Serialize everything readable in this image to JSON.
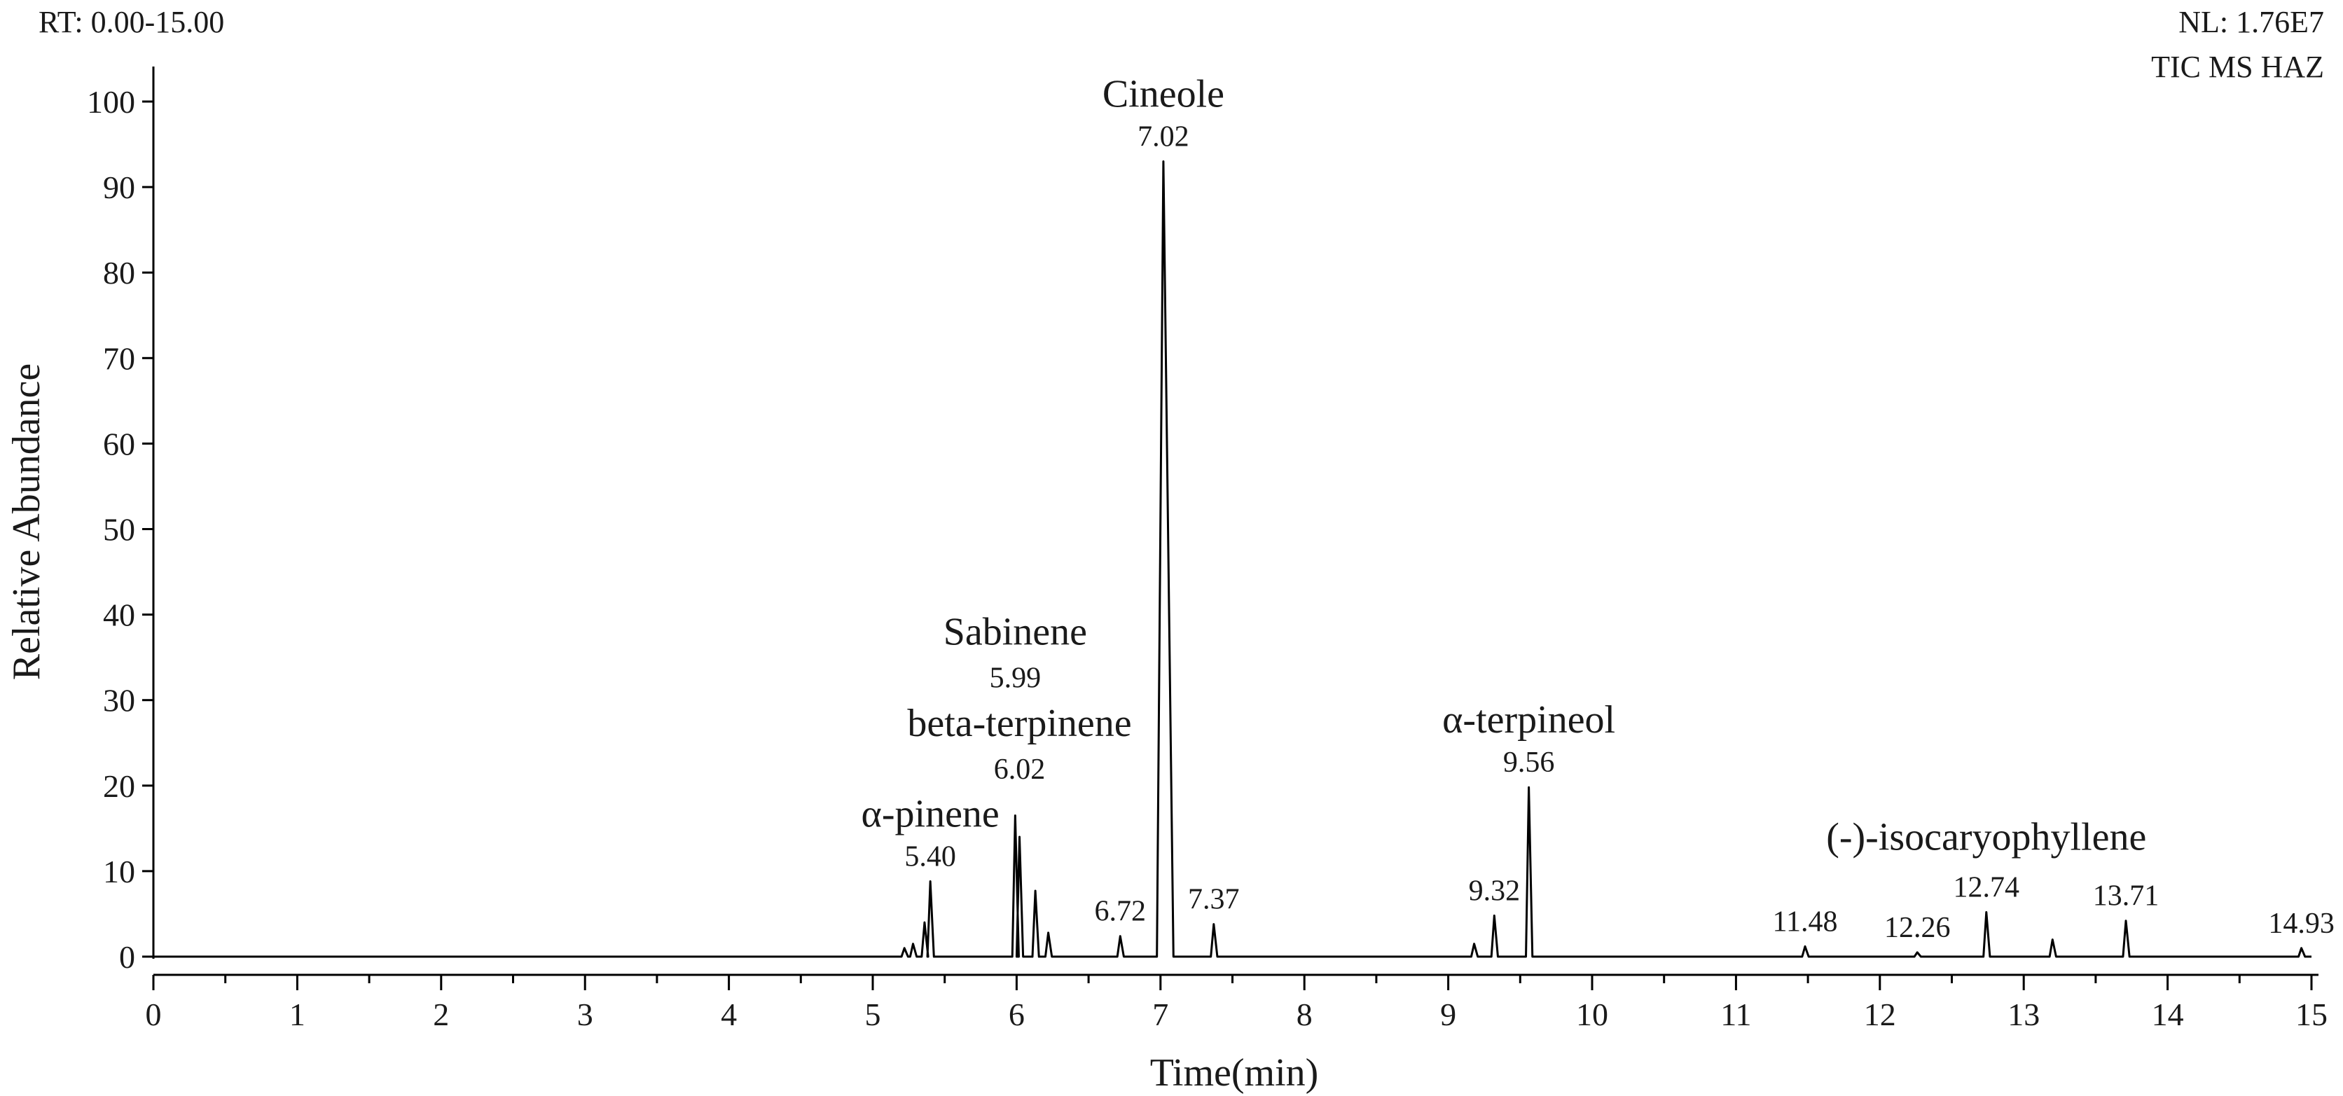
{
  "header": {
    "rt_range": "RT:  0.00-15.00",
    "nl": "NL:  1.76E7",
    "trace_type": "TIC MS HAZ"
  },
  "chart_data": {
    "type": "line",
    "xlabel": "Time(min)",
    "ylabel": "Relative Abundance",
    "xlim": [
      0,
      15
    ],
    "ylim": [
      0,
      100
    ],
    "x_ticks": [
      0,
      1,
      2,
      3,
      4,
      5,
      6,
      7,
      8,
      9,
      10,
      11,
      12,
      13,
      14,
      15
    ],
    "y_ticks": [
      0,
      10,
      20,
      30,
      40,
      50,
      60,
      70,
      80,
      90,
      100
    ],
    "grid": false,
    "peaks": [
      {
        "rt": 5.22,
        "height": 1.0
      },
      {
        "rt": 5.28,
        "height": 1.5
      },
      {
        "rt": 5.36,
        "height": 4.0
      },
      {
        "rt": 5.4,
        "height": 8.8
      },
      {
        "rt": 5.99,
        "height": 16.5
      },
      {
        "rt": 6.02,
        "height": 14.0
      },
      {
        "rt": 6.13,
        "height": 7.7
      },
      {
        "rt": 6.22,
        "height": 2.8
      },
      {
        "rt": 6.72,
        "height": 2.4
      },
      {
        "rt": 7.02,
        "height": 93.0
      },
      {
        "rt": 7.37,
        "height": 3.8
      },
      {
        "rt": 9.18,
        "height": 1.5
      },
      {
        "rt": 9.32,
        "height": 4.8
      },
      {
        "rt": 9.56,
        "height": 19.8
      },
      {
        "rt": 11.48,
        "height": 1.2
      },
      {
        "rt": 12.26,
        "height": 0.5
      },
      {
        "rt": 12.74,
        "height": 5.2
      },
      {
        "rt": 13.2,
        "height": 2.0
      },
      {
        "rt": 13.71,
        "height": 4.2
      },
      {
        "rt": 14.93,
        "height": 1.0
      }
    ],
    "annotations": [
      {
        "name": "α-pinene",
        "rt_label": "5.40",
        "x": 5.4
      },
      {
        "name": "Sabinene",
        "rt_label": "5.99",
        "x": 5.99
      },
      {
        "name": "beta-terpinene",
        "rt_label": "6.02",
        "x": 6.02
      },
      {
        "name": "",
        "rt_label": "6.72",
        "x": 6.72
      },
      {
        "name": "Cineole",
        "rt_label": "7.02",
        "x": 7.02
      },
      {
        "name": "",
        "rt_label": "7.37",
        "x": 7.37
      },
      {
        "name": "",
        "rt_label": "9.32",
        "x": 9.32
      },
      {
        "name": "α-terpineol",
        "rt_label": "9.56",
        "x": 9.56
      },
      {
        "name": "",
        "rt_label": "11.48",
        "x": 11.48
      },
      {
        "name": "",
        "rt_label": "12.26",
        "x": 12.26
      },
      {
        "name": "(-)-isocaryophyllene",
        "rt_label": "12.74",
        "x": 12.74
      },
      {
        "name": "",
        "rt_label": "13.71",
        "x": 13.71
      },
      {
        "name": "",
        "rt_label": "14.93",
        "x": 14.93
      }
    ]
  }
}
